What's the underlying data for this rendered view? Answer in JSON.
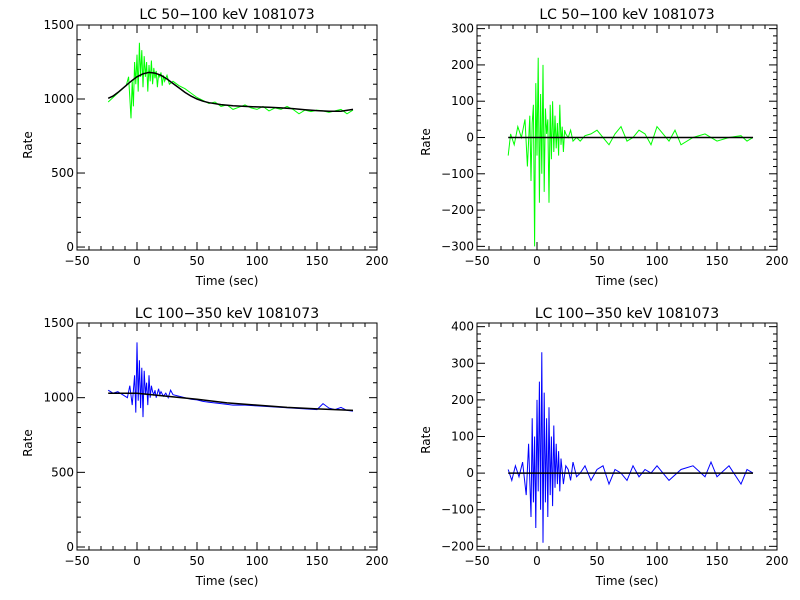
{
  "chart_data": [
    {
      "type": "line",
      "title": "LC 50−100 keV  1081073",
      "xlabel": "Time (sec)",
      "ylabel": "Rate",
      "xlim": [
        -50,
        200
      ],
      "ylim": [
        -20,
        1500
      ],
      "xticks": [
        -50,
        0,
        50,
        100,
        150,
        200
      ],
      "yticks": [
        0,
        500,
        1000,
        1500
      ],
      "xtick_labels": [
        "−50",
        "0",
        "50",
        "100",
        "150",
        "200"
      ],
      "ytick_labels": [
        "0",
        "500",
        "1000",
        "1500"
      ],
      "series": [
        {
          "kind": "data",
          "color": "#00ff00",
          "x": [
            -24,
            -20,
            -16,
            -12,
            -9,
            -7,
            -5,
            -4,
            -3,
            -2,
            -1,
            0,
            1,
            2,
            3,
            4,
            5,
            6,
            7,
            8,
            9,
            10,
            11,
            12,
            13,
            14,
            15,
            16,
            17,
            18,
            19,
            20,
            21,
            22,
            23,
            24,
            25,
            27,
            30,
            35,
            40,
            45,
            50,
            55,
            60,
            65,
            70,
            75,
            80,
            85,
            90,
            95,
            100,
            105,
            110,
            115,
            120,
            125,
            130,
            135,
            140,
            145,
            150,
            155,
            160,
            165,
            170,
            175,
            180
          ],
          "y": [
            980,
            1010,
            1040,
            1070,
            1090,
            1150,
            870,
            1120,
            950,
            1250,
            1100,
            1300,
            1050,
            1380,
            1150,
            1330,
            1080,
            1290,
            1150,
            1250,
            1050,
            1230,
            1120,
            1260,
            1100,
            1210,
            1140,
            1190,
            1080,
            1170,
            1150,
            1180,
            1090,
            1160,
            1120,
            1140,
            1160,
            1100,
            1120,
            1090,
            1070,
            1040,
            1010,
            990,
            970,
            980,
            950,
            960,
            930,
            945,
            960,
            940,
            930,
            950,
            920,
            940,
            930,
            950,
            930,
            900,
            925,
            915,
            925,
            920,
            910,
            920,
            930,
            900,
            925
          ]
        },
        {
          "kind": "fit",
          "color": "#000000",
          "x": [
            -24,
            -20,
            -15,
            -10,
            -5,
            0,
            5,
            10,
            15,
            20,
            25,
            30,
            35,
            40,
            45,
            50,
            55,
            60,
            70,
            80,
            90,
            100,
            110,
            120,
            130,
            140,
            150,
            160,
            170,
            180
          ],
          "y": [
            1005,
            1020,
            1050,
            1085,
            1120,
            1150,
            1170,
            1180,
            1175,
            1160,
            1135,
            1105,
            1075,
            1045,
            1020,
            1000,
            985,
            975,
            962,
            955,
            950,
            947,
            944,
            940,
            935,
            928,
            922,
            918,
            918,
            930
          ]
        }
      ]
    },
    {
      "type": "line",
      "title": "LC 50−100 keV  1081073",
      "xlabel": "Time (sec)",
      "ylabel": "Rate",
      "xlim": [
        -50,
        200
      ],
      "ylim": [
        -310,
        310
      ],
      "xticks": [
        -50,
        0,
        50,
        100,
        150,
        200
      ],
      "yticks": [
        -300,
        -200,
        -100,
        0,
        100,
        200,
        300
      ],
      "xtick_labels": [
        "−50",
        "0",
        "50",
        "100",
        "150",
        "200"
      ],
      "ytick_labels": [
        "−300",
        "−200",
        "−100",
        "0",
        "100",
        "200",
        "300"
      ],
      "series": [
        {
          "kind": "data",
          "color": "#00ff00",
          "x": [
            -24,
            -22,
            -19,
            -16,
            -13,
            -10,
            -8,
            -6,
            -5,
            -4,
            -3,
            -2,
            -1,
            0,
            1,
            2,
            3,
            4,
            5,
            6,
            7,
            8,
            9,
            10,
            11,
            12,
            13,
            14,
            15,
            16,
            17,
            18,
            19,
            20,
            21,
            22,
            23,
            24,
            26,
            28,
            30,
            33,
            36,
            40,
            45,
            50,
            55,
            60,
            65,
            70,
            75,
            80,
            85,
            90,
            95,
            100,
            110,
            115,
            120,
            130,
            140,
            150,
            160,
            170,
            175,
            180
          ],
          "y": [
            -50,
            10,
            -20,
            30,
            0,
            50,
            -80,
            60,
            -120,
            40,
            90,
            -300,
            150,
            -50,
            220,
            -180,
            120,
            -100,
            200,
            -150,
            80,
            10,
            50,
            -180,
            90,
            -60,
            100,
            -40,
            60,
            -30,
            40,
            -50,
            90,
            -20,
            30,
            -40,
            20,
            10,
            0,
            20,
            -10,
            0,
            -10,
            5,
            10,
            20,
            0,
            -20,
            10,
            30,
            -10,
            0,
            20,
            10,
            -20,
            30,
            -10,
            20,
            -20,
            0,
            10,
            -10,
            0,
            5,
            -10,
            0
          ]
        },
        {
          "kind": "fit",
          "color": "#000000",
          "x": [
            -24,
            180
          ],
          "y": [
            0,
            0
          ]
        }
      ]
    },
    {
      "type": "line",
      "title": "LC 100−350 keV  1081073",
      "xlabel": "Time (sec)",
      "ylabel": "Rate",
      "xlim": [
        -50,
        200
      ],
      "ylim": [
        -20,
        1500
      ],
      "xticks": [
        -50,
        0,
        50,
        100,
        150,
        200
      ],
      "yticks": [
        0,
        500,
        1000,
        1500
      ],
      "xtick_labels": [
        "−50",
        "0",
        "50",
        "100",
        "150",
        "200"
      ],
      "ytick_labels": [
        "0",
        "500",
        "1000",
        "1500"
      ],
      "series": [
        {
          "kind": "data",
          "color": "#0000ff",
          "x": [
            -24,
            -20,
            -16,
            -12,
            -8,
            -6,
            -4,
            -2,
            -1,
            0,
            1,
            2,
            3,
            4,
            5,
            6,
            7,
            8,
            9,
            10,
            11,
            12,
            13,
            14,
            15,
            16,
            17,
            18,
            19,
            20,
            22,
            24,
            26,
            28,
            30,
            35,
            40,
            45,
            50,
            55,
            60,
            70,
            80,
            90,
            100,
            110,
            120,
            130,
            140,
            150,
            155,
            160,
            165,
            170,
            175,
            180
          ],
          "y": [
            1050,
            1030,
            1040,
            1020,
            1000,
            1080,
            950,
            1150,
            900,
            1370,
            980,
            1250,
            930,
            1200,
            870,
            1180,
            1020,
            1100,
            950,
            1150,
            1000,
            1080,
            1040,
            1020,
            1050,
            1000,
            1030,
            1060,
            1020,
            1040,
            1010,
            1030,
            1000,
            1050,
            1020,
            1010,
            1000,
            990,
            985,
            975,
            970,
            960,
            950,
            950,
            945,
            940,
            935,
            930,
            925,
            920,
            960,
            930,
            920,
            935,
            915,
            910
          ]
        },
        {
          "kind": "fit",
          "color": "#000000",
          "x": [
            -24,
            0,
            25,
            50,
            75,
            100,
            125,
            150,
            180
          ],
          "y": [
            1030,
            1030,
            1010,
            990,
            965,
            950,
            935,
            925,
            915
          ]
        }
      ]
    },
    {
      "type": "line",
      "title": "LC 100−350 keV  1081073",
      "xlabel": "Time (sec)",
      "ylabel": "Rate",
      "xlim": [
        -50,
        200
      ],
      "ylim": [
        -210,
        410
      ],
      "xticks": [
        -50,
        0,
        50,
        100,
        150,
        200
      ],
      "yticks": [
        -200,
        -100,
        0,
        100,
        200,
        300,
        400
      ],
      "xtick_labels": [
        "−50",
        "0",
        "50",
        "100",
        "150",
        "200"
      ],
      "ytick_labels": [
        "−200",
        "−100",
        "0",
        "100",
        "200",
        "300",
        "400"
      ],
      "series": [
        {
          "kind": "data",
          "color": "#0000ff",
          "x": [
            -24,
            -21,
            -18,
            -15,
            -12,
            -9,
            -7,
            -5,
            -4,
            -3,
            -2,
            -1,
            0,
            1,
            2,
            3,
            4,
            5,
            6,
            7,
            8,
            9,
            10,
            11,
            12,
            13,
            14,
            15,
            16,
            17,
            18,
            19,
            20,
            22,
            24,
            26,
            28,
            30,
            33,
            36,
            40,
            45,
            50,
            55,
            60,
            65,
            70,
            75,
            80,
            85,
            90,
            95,
            100,
            110,
            120,
            130,
            140,
            145,
            150,
            160,
            170,
            175,
            180
          ],
          "y": [
            10,
            -20,
            20,
            -10,
            30,
            -60,
            80,
            -120,
            150,
            -80,
            100,
            -150,
            200,
            -50,
            250,
            -100,
            330,
            -190,
            220,
            -80,
            150,
            -120,
            180,
            -60,
            100,
            -90,
            130,
            -40,
            80,
            -30,
            60,
            -50,
            40,
            -30,
            20,
            10,
            -20,
            30,
            -10,
            0,
            20,
            -20,
            10,
            20,
            -30,
            10,
            0,
            -20,
            20,
            -10,
            10,
            0,
            20,
            -20,
            10,
            20,
            -10,
            30,
            -10,
            20,
            -30,
            10,
            0
          ]
        },
        {
          "kind": "fit",
          "color": "#000000",
          "x": [
            -24,
            180
          ],
          "y": [
            0,
            0
          ]
        }
      ]
    }
  ]
}
